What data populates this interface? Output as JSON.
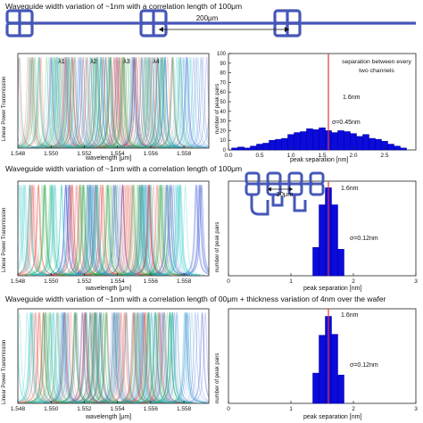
{
  "rows": [
    {
      "letter": "a",
      "title": "Waveguide width variation of ~1nm with a correlation length of 100μm",
      "schematic_label": "200μm",
      "spectrum": {
        "ylabel": "Linear Power Transmission",
        "xlabel": "wavelength [μm]",
        "ticks": [
          "1.548",
          "1.550",
          "1.552",
          "1.554",
          "1.556",
          "1.558"
        ],
        "channel_labels": [
          "λ1",
          "λ2",
          "λ3",
          "λ4"
        ]
      },
      "histogram": {
        "ylabel": "number of peak pairs",
        "xlabel": "peak separation [nm]",
        "yticks": [
          "0",
          "10",
          "20",
          "30",
          "40",
          "50",
          "60",
          "70",
          "80",
          "90",
          "100"
        ],
        "xticks": [
          "0.0",
          "0.5",
          "1.0",
          "1.5",
          "2.0",
          "2.5"
        ],
        "annotation": "separation between every two channels",
        "mean_label": "1.6nm",
        "sigma_label": "σ=0.45nm"
      }
    },
    {
      "letter": "b",
      "title": "Waveguide width variation of ~1nm with a correlation length of 100μm",
      "schematic_label": "30μm",
      "spectrum": {
        "ylabel": "Linear Power Transmission",
        "xlabel": "wavelength [μm]",
        "ticks": [
          "1.548",
          "1.550",
          "1.552",
          "1.554",
          "1.556",
          "1.558"
        ]
      },
      "histogram": {
        "ylabel": "number of peak pairs",
        "xlabel": "peak separation [nm]",
        "xticks": [
          "0",
          "1",
          "2",
          "3"
        ],
        "mean_label": "1.6nm",
        "sigma_label": "σ=0.12nm"
      }
    },
    {
      "letter": "c",
      "title": "Waveguide width variation of ~1nm with a correlation length of 00μm + thickness variation of 4nm over the wafer",
      "spectrum": {
        "ylabel": "Linear Power Transmission",
        "xlabel": "wavelength [μm]",
        "ticks": [
          "1.548",
          "1.550",
          "1.552",
          "1.554",
          "1.556",
          "1.558"
        ]
      },
      "histogram": {
        "ylabel": "number of peak pairs",
        "xlabel": "peak separation [nm]",
        "xticks": [
          "0",
          "1",
          "2",
          "3"
        ],
        "mean_label": "1.6nm",
        "sigma_label": "σ=0.12nm"
      }
    }
  ],
  "chart_data": [
    {
      "type": "bar",
      "title": "",
      "xlabel": "peak separation [nm]",
      "ylabel": "number of peak pairs",
      "xlim": [
        0,
        3.0
      ],
      "ylim": [
        0,
        100
      ],
      "bin_width": 0.1,
      "x": [
        0.1,
        0.2,
        0.3,
        0.4,
        0.5,
        0.6,
        0.7,
        0.8,
        0.9,
        1.0,
        1.1,
        1.2,
        1.3,
        1.4,
        1.5,
        1.6,
        1.7,
        1.8,
        1.9,
        2.0,
        2.1,
        2.2,
        2.3,
        2.4,
        2.5,
        2.6,
        2.7,
        2.8
      ],
      "values": [
        2,
        3,
        2,
        4,
        6,
        7,
        10,
        11,
        12,
        16,
        18,
        19,
        22,
        21,
        23,
        20,
        18,
        20,
        19,
        17,
        14,
        16,
        12,
        11,
        9,
        6,
        4,
        2
      ],
      "reference_line": 1.6
    },
    {
      "type": "bar",
      "title": "",
      "xlabel": "peak separation [nm]",
      "ylabel": "number of peak pairs",
      "xlim": [
        0,
        3
      ],
      "ylim": [
        0,
        100
      ],
      "bin_width": 0.1,
      "x": [
        1.4,
        1.5,
        1.6,
        1.7,
        1.8
      ],
      "values": [
        30,
        75,
        93,
        75,
        28
      ],
      "reference_line": 1.6
    },
    {
      "type": "bar",
      "title": "",
      "xlabel": "peak separation [nm]",
      "ylabel": "number of peak pairs",
      "xlim": [
        0,
        3
      ],
      "ylim": [
        0,
        100
      ],
      "bin_width": 0.1,
      "x": [
        1.4,
        1.5,
        1.6,
        1.7,
        1.8
      ],
      "values": [
        32,
        72,
        92,
        73,
        30
      ],
      "reference_line": 1.6
    },
    {
      "type": "line",
      "title": "",
      "xlabel": "wavelength [μm]",
      "ylabel": "Linear Power Transmission",
      "xlim": [
        1.548,
        1.5595
      ],
      "series": [
        {
          "name": "λ1",
          "color": "#3a55d8",
          "centers": [
            1.5509,
            1.5524,
            1.554,
            1.5556,
            1.5572,
            1.5588
          ]
        },
        {
          "name": "λ2",
          "color": "#e8453a",
          "centers": [
            1.549,
            1.5514,
            1.553,
            1.5546,
            1.5562
          ]
        },
        {
          "name": "λ3",
          "color": "#2aa745",
          "centers": [
            1.5498,
            1.552,
            1.5536,
            1.5552,
            1.5568
          ]
        },
        {
          "name": "λ4",
          "color": "#19c2c2",
          "centers": [
            1.5484,
            1.5503,
            1.5526,
            1.5558,
            1.5578
          ]
        }
      ]
    }
  ],
  "colors": {
    "blue": "#2b3fd6",
    "red": "#e53935",
    "green": "#2e9d45",
    "cyan": "#17bfc4",
    "waveguide": "#4657b8"
  }
}
